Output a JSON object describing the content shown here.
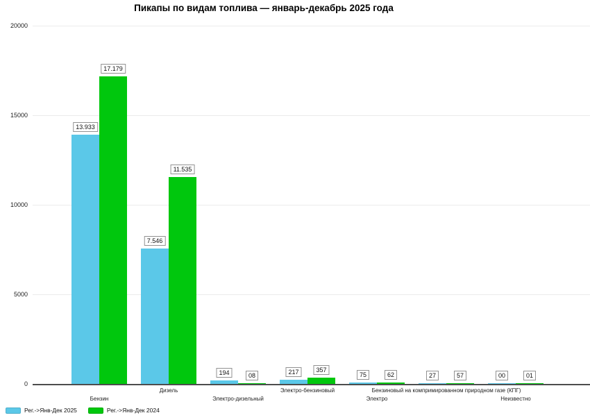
{
  "title": "Пикапы по видам топлива — январь-декабрь 2025 года",
  "colors": {
    "series_2025": "#5BC8E8",
    "series_2024": "#00C70D",
    "gridline": "#ebebeb",
    "axis_line": "#4d4d4d",
    "background": "#ffffff",
    "label_box_border": "#919191"
  },
  "chart_data": {
    "type": "bar",
    "title": "Пикапы по видам топлива — январь-декабрь 2025 года",
    "categories": [
      "Бензин",
      "Дизель",
      "Электро-дизельный",
      "Электро-бензиновый",
      "Электро",
      "Бензиновый на компримированном природном газе (КПГ)",
      "Неизвестно"
    ],
    "series": [
      {
        "name": "Рег.->Янв-Дек 2025",
        "color": "#5BC8E8",
        "values": [
          13933,
          7546,
          194,
          217,
          75,
          27,
          0
        ],
        "value_labels": [
          "13.933",
          "7.546",
          "194",
          "217",
          "75",
          "27",
          "00"
        ]
      },
      {
        "name": "Рег.->Янв-Дек 2024",
        "color": "#00C70D",
        "values": [
          17179,
          11535,
          8,
          357,
          62,
          57,
          1
        ],
        "value_labels": [
          "17.179",
          "11.535",
          "08",
          "357",
          "62",
          "57",
          "01"
        ]
      }
    ],
    "xlabel": "",
    "ylabel": "",
    "ylim": [
      0,
      20000
    ],
    "yticks": [
      0,
      5000,
      10000,
      15000,
      20000
    ],
    "grid": true,
    "legend_position": "bottom-left"
  }
}
